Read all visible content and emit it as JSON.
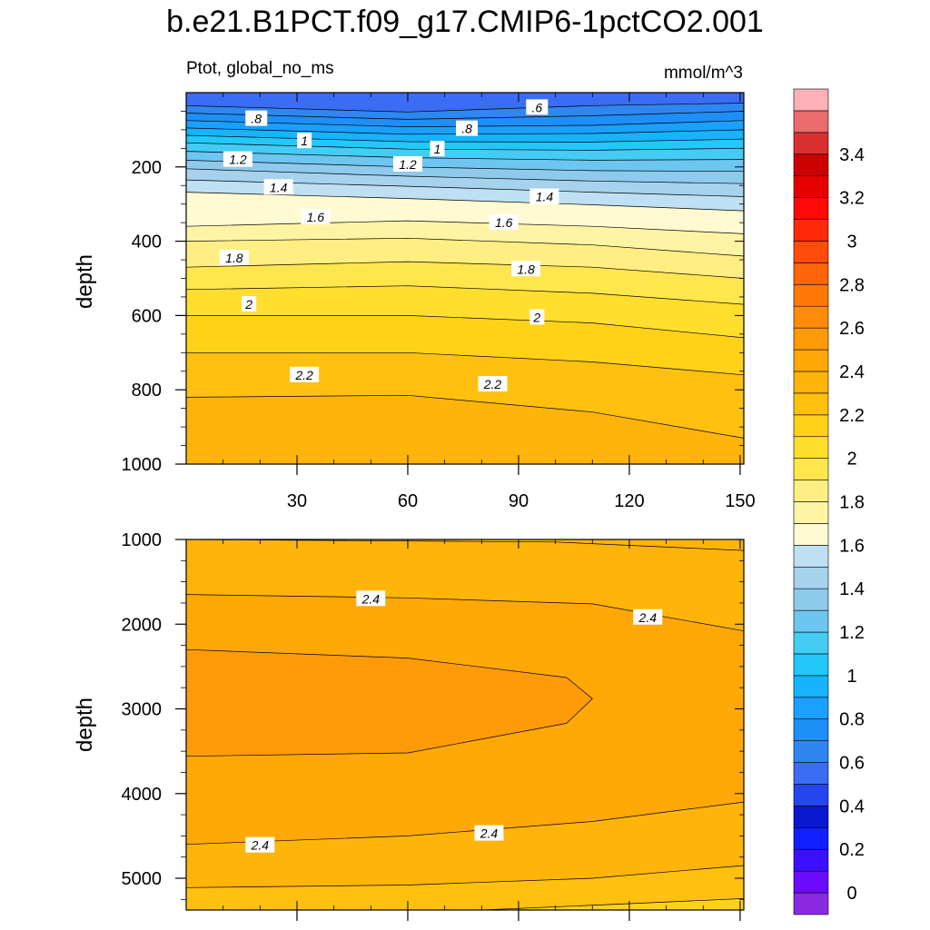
{
  "title": "b.e21.B1PCT.f09_g17.CMIP6-1pctCO2.001",
  "chart_data": [
    {
      "type": "contour",
      "panel": "upper",
      "subtitle_left": "Ptot, global_no_ms",
      "subtitle_right": "mmol/m^3",
      "ylabel": "depth",
      "xlabel": "",
      "xlim": [
        0,
        151
      ],
      "ylim": [
        0,
        1000
      ],
      "y_reversed": true,
      "xticks": [
        30,
        60,
        90,
        120,
        150
      ],
      "xtick_labels": [
        "30",
        "60",
        "90",
        "120",
        "150"
      ],
      "yticks": [
        200,
        400,
        600,
        800,
        1000
      ],
      "ytick_labels": [
        "200",
        "400",
        "600",
        "800",
        "1000"
      ],
      "contour_levels": [
        0.6,
        0.7,
        0.8,
        0.9,
        1.0,
        1.1,
        1.2,
        1.3,
        1.4,
        1.5,
        1.6,
        1.7,
        1.8,
        1.9,
        2.0,
        2.1,
        2.2,
        2.3
      ],
      "contours": [
        {
          "level": 0.6,
          "points": [
            [
              0,
              35
            ],
            [
              60,
              52
            ],
            [
              110,
              35
            ],
            [
              151,
              28
            ]
          ]
        },
        {
          "level": 0.7,
          "points": [
            [
              0,
              55
            ],
            [
              60,
              72
            ],
            [
              110,
              62
            ],
            [
              151,
              50
            ]
          ]
        },
        {
          "level": 0.8,
          "points": [
            [
              0,
              75
            ],
            [
              60,
              92
            ],
            [
              110,
              88
            ],
            [
              151,
              75
            ]
          ]
        },
        {
          "level": 0.9,
          "points": [
            [
              0,
              95
            ],
            [
              60,
              112
            ],
            [
              110,
              110
            ],
            [
              151,
              100
            ]
          ]
        },
        {
          "level": 1.0,
          "points": [
            [
              0,
              115
            ],
            [
              60,
              132
            ],
            [
              110,
              133
            ],
            [
              151,
              125
            ]
          ]
        },
        {
          "level": 1.1,
          "points": [
            [
              0,
              135
            ],
            [
              60,
              152
            ],
            [
              110,
              155
            ],
            [
              151,
              150
            ]
          ]
        },
        {
          "level": 1.2,
          "points": [
            [
              0,
              158
            ],
            [
              60,
              175
            ],
            [
              110,
              182
            ],
            [
              151,
              180
            ]
          ]
        },
        {
          "level": 1.3,
          "points": [
            [
              0,
              182
            ],
            [
              60,
              200
            ],
            [
              110,
              210
            ],
            [
              151,
              212
            ]
          ]
        },
        {
          "level": 1.4,
          "points": [
            [
              0,
              205
            ],
            [
              60,
              225
            ],
            [
              110,
              238
            ],
            [
              151,
              245
            ]
          ]
        },
        {
          "level": 1.5,
          "points": [
            [
              0,
              235
            ],
            [
              60,
              252
            ],
            [
              110,
              268
            ],
            [
              151,
              280
            ]
          ]
        },
        {
          "level": 1.6,
          "points": [
            [
              0,
              268
            ],
            [
              60,
              285
            ],
            [
              110,
              302
            ],
            [
              151,
              318
            ]
          ]
        },
        {
          "level": 1.7,
          "points": [
            [
              0,
              360
            ],
            [
              60,
              345
            ],
            [
              110,
              360
            ],
            [
              151,
              380
            ]
          ]
        },
        {
          "level": 1.8,
          "points": [
            [
              0,
              400
            ],
            [
              60,
              392
            ],
            [
              110,
              410
            ],
            [
              151,
              440
            ]
          ]
        },
        {
          "level": 1.9,
          "points": [
            [
              0,
              470
            ],
            [
              60,
              455
            ],
            [
              110,
              470
            ],
            [
              151,
              500
            ]
          ]
        },
        {
          "level": 2.0,
          "points": [
            [
              0,
              530
            ],
            [
              60,
              520
            ],
            [
              110,
              540
            ],
            [
              151,
              570
            ]
          ]
        },
        {
          "level": 2.1,
          "points": [
            [
              0,
              600
            ],
            [
              60,
              600
            ],
            [
              110,
              620
            ],
            [
              151,
              660
            ]
          ]
        },
        {
          "level": 2.2,
          "points": [
            [
              0,
              700
            ],
            [
              60,
              700
            ],
            [
              110,
              725
            ],
            [
              151,
              760
            ]
          ]
        },
        {
          "level": 2.3,
          "points": [
            [
              0,
              820
            ],
            [
              60,
              815
            ],
            [
              110,
              860
            ],
            [
              151,
              930
            ]
          ]
        }
      ],
      "contour_labels": [
        {
          "text": ".8",
          "x": 19,
          "y": 70
        },
        {
          "text": ".8",
          "x": 76,
          "y": 97
        },
        {
          "text": ".6",
          "x": 95,
          "y": 40
        },
        {
          "text": "1",
          "x": 32,
          "y": 130
        },
        {
          "text": "1",
          "x": 68,
          "y": 152
        },
        {
          "text": "1.2",
          "x": 14,
          "y": 180
        },
        {
          "text": "1.2",
          "x": 60,
          "y": 193
        },
        {
          "text": "1.4",
          "x": 25,
          "y": 255
        },
        {
          "text": "1.4",
          "x": 97,
          "y": 280
        },
        {
          "text": "1.6",
          "x": 35,
          "y": 335
        },
        {
          "text": "1.6",
          "x": 86,
          "y": 350
        },
        {
          "text": "1.8",
          "x": 13,
          "y": 445
        },
        {
          "text": "1.8",
          "x": 92,
          "y": 475
        },
        {
          "text": "2",
          "x": 17,
          "y": 570
        },
        {
          "text": "2",
          "x": 95,
          "y": 605
        },
        {
          "text": "2.2",
          "x": 32,
          "y": 760
        },
        {
          "text": "2.2",
          "x": 83,
          "y": 785
        }
      ]
    },
    {
      "type": "contour",
      "panel": "lower",
      "ylabel": "depth",
      "xlabel": "",
      "xlim": [
        0,
        151
      ],
      "ylim": [
        1000,
        5375
      ],
      "y_reversed": true,
      "xticks": [
        30,
        60,
        90,
        120,
        150
      ],
      "yticks": [
        1000,
        2000,
        3000,
        4000,
        5000
      ],
      "ytick_labels": [
        "1000",
        "2000",
        "3000",
        "4000",
        "5000"
      ],
      "contour_levels": [
        2.3,
        2.4,
        2.5
      ],
      "contours": [
        {
          "level": 2.3,
          "points": [
            [
              0,
              1000
            ],
            [
              100,
              1030
            ],
            [
              151,
              1130
            ]
          ]
        },
        {
          "level": 2.4,
          "points": [
            [
              0,
              1650
            ],
            [
              60,
              1690
            ],
            [
              110,
              1760
            ],
            [
              151,
              2080
            ]
          ]
        },
        {
          "level": 2.5,
          "points": [
            [
              0,
              2300
            ],
            [
              60,
              2400
            ],
            [
              103,
              2630
            ],
            [
              110,
              2880
            ],
            [
              103,
              3170
            ],
            [
              60,
              3520
            ],
            [
              0,
              3560
            ]
          ]
        },
        {
          "level": 2.4,
          "points": [
            [
              0,
              4600
            ],
            [
              60,
              4500
            ],
            [
              110,
              4330
            ],
            [
              151,
              4100
            ]
          ]
        },
        {
          "level": 2.3,
          "points": [
            [
              0,
              5110
            ],
            [
              60,
              5080
            ],
            [
              110,
              5000
            ],
            [
              151,
              4850
            ]
          ]
        },
        {
          "level": 2.2,
          "points": [
            [
              80,
              5375
            ],
            [
              120,
              5300
            ],
            [
              151,
              5240
            ]
          ]
        }
      ],
      "contour_labels": [
        {
          "text": "2.4",
          "x": 50,
          "y": 1700
        },
        {
          "text": "2.4",
          "x": 125,
          "y": 1920
        },
        {
          "text": "2.4",
          "x": 20,
          "y": 4610
        },
        {
          "text": "2.4",
          "x": 82,
          "y": 4470
        }
      ]
    }
  ],
  "colorbar": {
    "levels": [
      -0.1,
      0,
      0.1,
      0.2,
      0.3,
      0.4,
      0.5,
      0.6,
      0.7,
      0.8,
      0.9,
      1.0,
      1.1,
      1.2,
      1.3,
      1.4,
      1.5,
      1.6,
      1.7,
      1.8,
      1.9,
      2.0,
      2.1,
      2.2,
      2.3,
      2.4,
      2.5,
      2.6,
      2.7,
      2.8,
      2.9,
      3.0,
      3.1,
      3.2,
      3.3,
      3.4,
      3.5,
      3.6
    ],
    "colors": [
      "#8a2be2",
      "#6a0aff",
      "#3c10ff",
      "#1020ff",
      "#0a18d0",
      "#2545ee",
      "#3a6cf4",
      "#2f86f0",
      "#1e8ef8",
      "#1aa0ff",
      "#15b4fc",
      "#22c8fa",
      "#44ccf4",
      "#6dc6f0",
      "#8ecaec",
      "#a6d2ee",
      "#bfe0f2",
      "#fffad2",
      "#fff4a4",
      "#ffee82",
      "#ffe64e",
      "#ffde2e",
      "#ffd218",
      "#ffc010",
      "#ffb40a",
      "#ffa808",
      "#ff9b08",
      "#ff8c08",
      "#ff7808",
      "#ff6408",
      "#ff4c08",
      "#ff2a08",
      "#ff0808",
      "#e60000",
      "#cc0000",
      "#da3030",
      "#ea6c6c",
      "#ffb0b8"
    ],
    "tick_labels": [
      "0",
      "0.2",
      "0.4",
      "0.6",
      "0.8",
      "1",
      "1.2",
      "1.4",
      "1.6",
      "1.8",
      "2",
      "2.2",
      "2.4",
      "2.6",
      "2.8",
      "3",
      "3.2",
      "3.4"
    ],
    "tick_values": [
      0,
      0.2,
      0.4,
      0.6,
      0.8,
      1.0,
      1.2,
      1.4,
      1.6,
      1.8,
      2.0,
      2.2,
      2.4,
      2.6,
      2.8,
      3.0,
      3.2,
      3.4
    ]
  }
}
